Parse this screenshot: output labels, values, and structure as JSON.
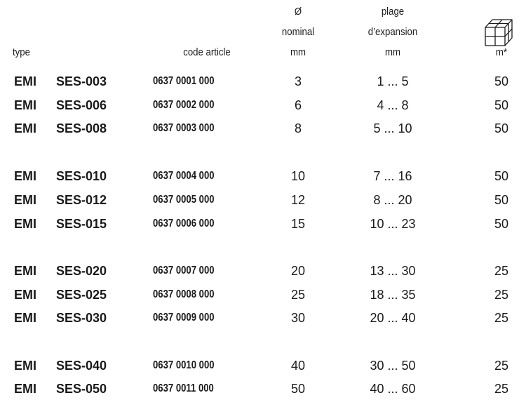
{
  "headers": {
    "type": "type",
    "code": "code article",
    "diameter": [
      "Ø",
      "nominal",
      "mm"
    ],
    "range": [
      "plage",
      "d’expansion",
      "mm"
    ],
    "qty": "m*"
  },
  "rows": [
    {
      "t1": "EMI",
      "t2": "SES-003",
      "code": "0637 0001 000",
      "dia": "3",
      "range": "1 ... 5",
      "qty": "50"
    },
    {
      "t1": "EMI",
      "t2": "SES-006",
      "code": "0637 0002 000",
      "dia": "6",
      "range": "4 ... 8",
      "qty": "50"
    },
    {
      "t1": "EMI",
      "t2": "SES-008",
      "code": "0637 0003 000",
      "dia": "8",
      "range": "5 ... 10",
      "qty": "50"
    },
    {
      "t1": "EMI",
      "t2": "SES-010",
      "code": "0637 0004 000",
      "dia": "10",
      "range": "7 ... 16",
      "qty": "50"
    },
    {
      "t1": "EMI",
      "t2": "SES-012",
      "code": "0637 0005 000",
      "dia": "12",
      "range": "8 ... 20",
      "qty": "50"
    },
    {
      "t1": "EMI",
      "t2": "SES-015",
      "code": "0637 0006 000",
      "dia": "15",
      "range": "10 ... 23",
      "qty": "50"
    },
    {
      "t1": "EMI",
      "t2": "SES-020",
      "code": "0637 0007 000",
      "dia": "20",
      "range": "13 ... 30",
      "qty": "25"
    },
    {
      "t1": "EMI",
      "t2": "SES-025",
      "code": "0637 0008 000",
      "dia": "25",
      "range": "18 ... 35",
      "qty": "25"
    },
    {
      "t1": "EMI",
      "t2": "SES-030",
      "code": "0637 0009 000",
      "dia": "30",
      "range": "20 ... 40",
      "qty": "25"
    },
    {
      "t1": "EMI",
      "t2": "SES-040",
      "code": "0637 0010 000",
      "dia": "40",
      "range": "30 ... 50",
      "qty": "25"
    },
    {
      "t1": "EMI",
      "t2": "SES-050",
      "code": "0637 0011 000",
      "dia": "50",
      "range": "40 ... 60",
      "qty": "25"
    }
  ],
  "icons": {
    "package": "box-icon"
  }
}
